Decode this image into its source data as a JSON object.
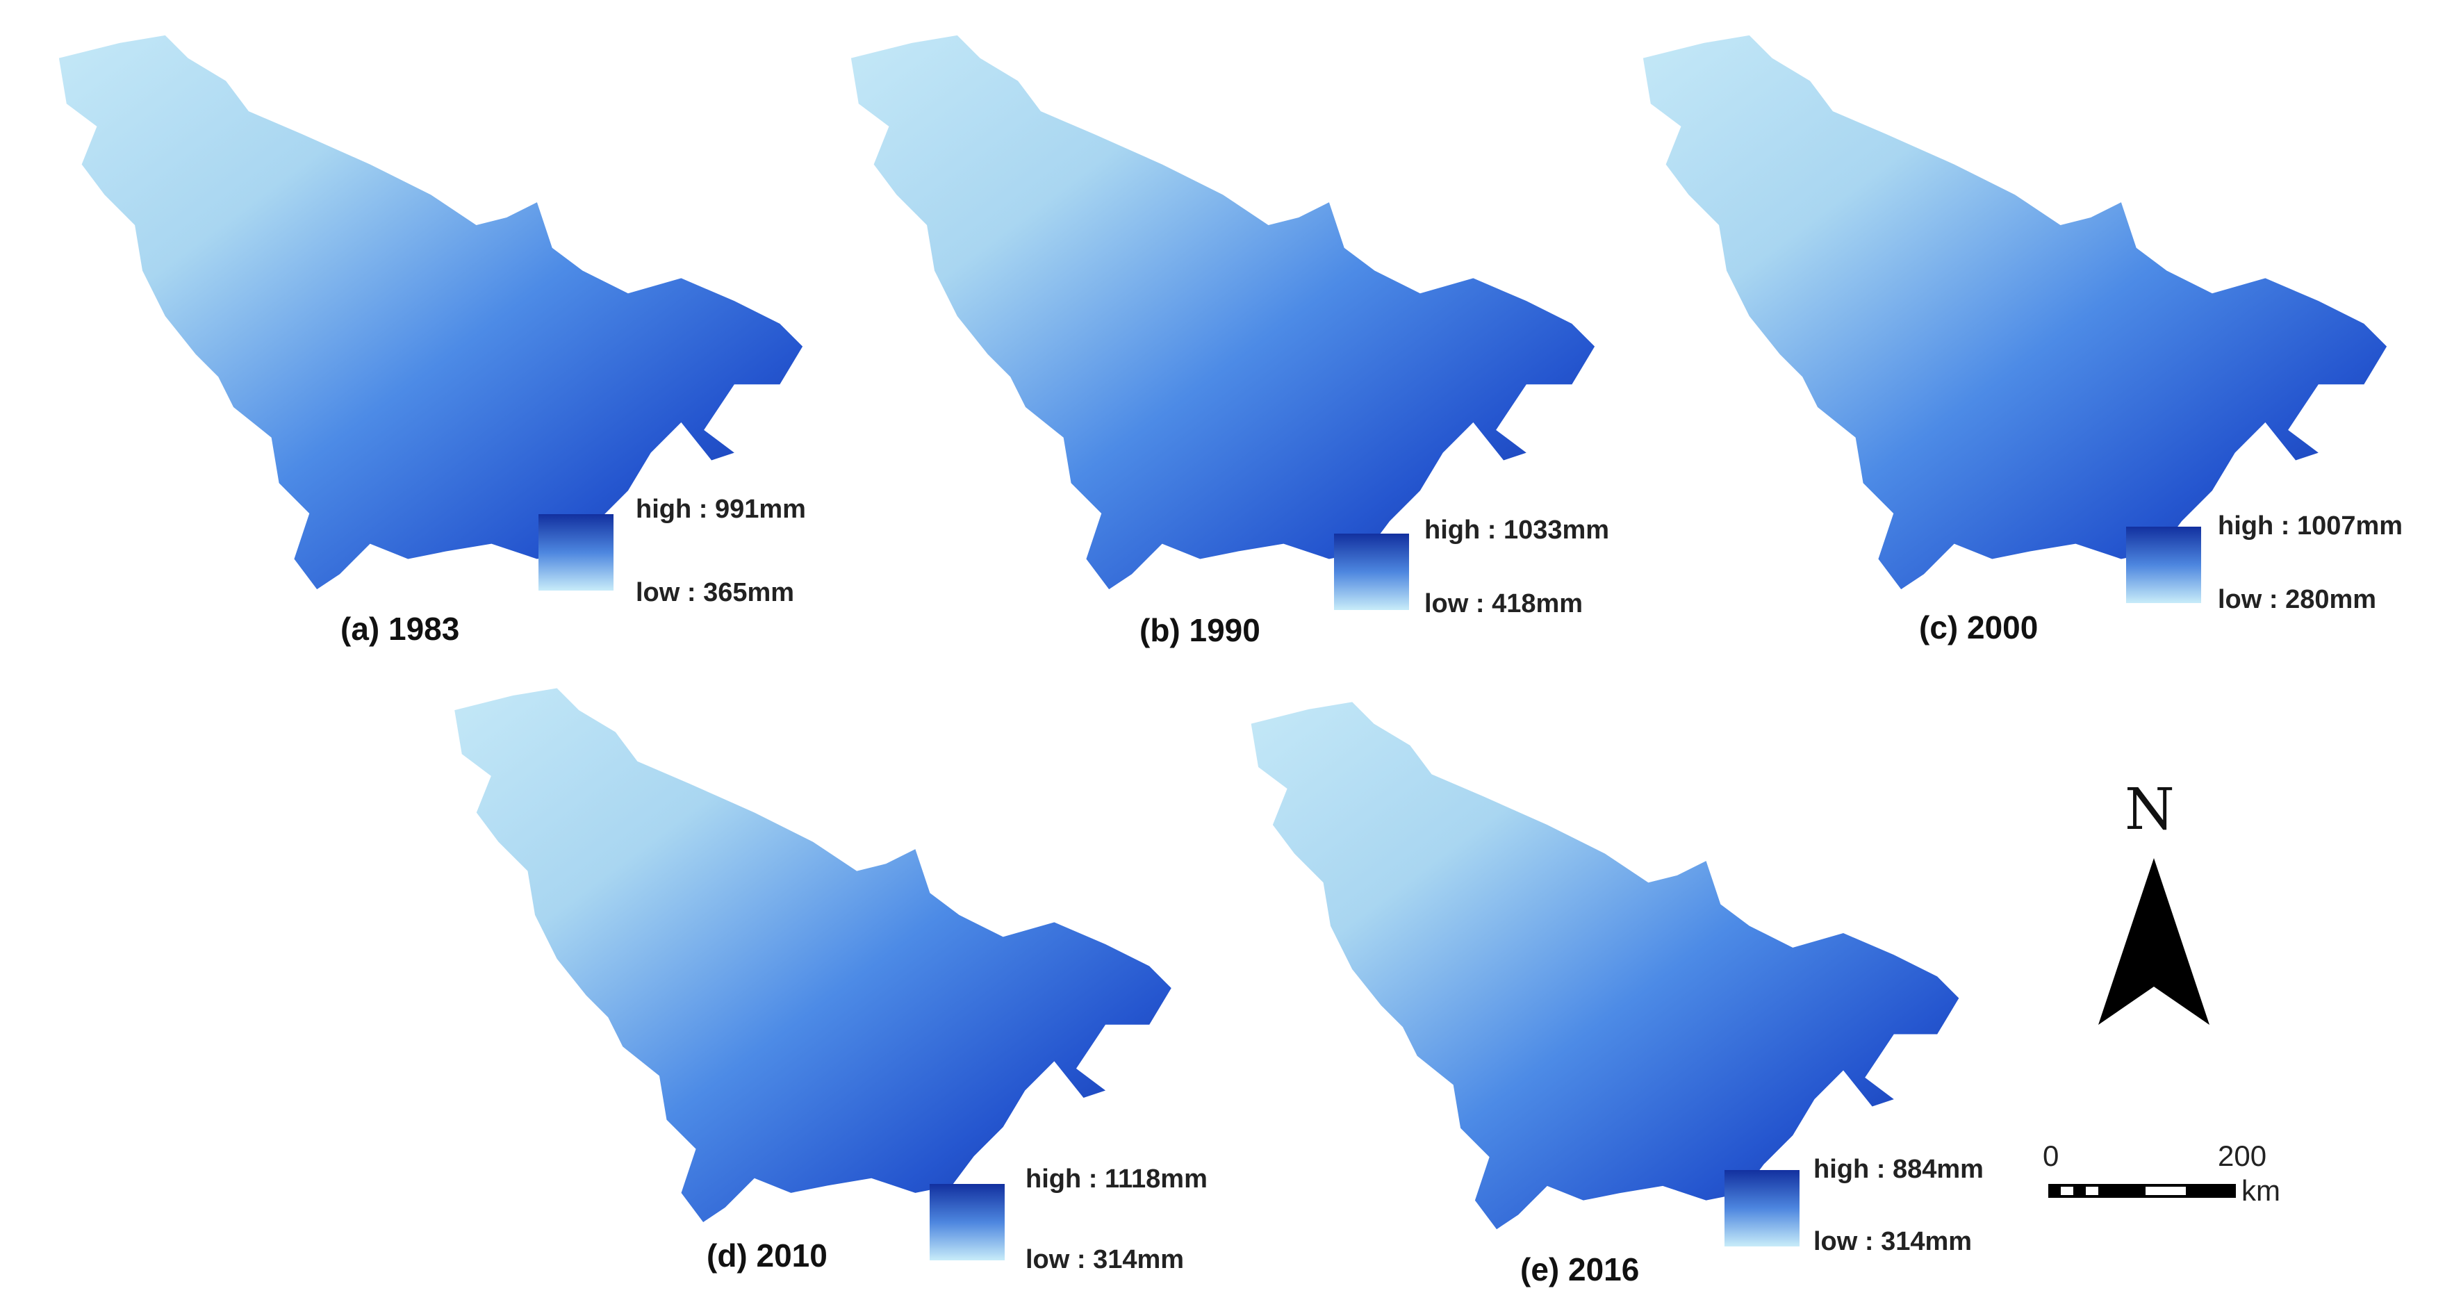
{
  "colors": {
    "low": "#bfe6f7",
    "mid": "#3f7fe0",
    "high": "#0f2fa8"
  },
  "panels": [
    {
      "id": "a",
      "caption": "(a) 1983",
      "high_label": "high : 991mm",
      "low_label": "low : 365mm"
    },
    {
      "id": "b",
      "caption": "(b) 1990",
      "high_label": "high : 1033mm",
      "low_label": "low : 418mm"
    },
    {
      "id": "c",
      "caption": "(c) 2000",
      "high_label": "high : 1007mm",
      "low_label": "low : 280mm"
    },
    {
      "id": "d",
      "caption": "(d) 2010",
      "high_label": "high : 1118mm",
      "low_label": "low : 314mm"
    },
    {
      "id": "e",
      "caption": "(e) 2016",
      "high_label": "high : 884mm",
      "low_label": "low : 314mm"
    }
  ],
  "north_arrow": {
    "letter": "N"
  },
  "scale_bar": {
    "start_label": "0",
    "end_label": "200",
    "unit": "km"
  }
}
